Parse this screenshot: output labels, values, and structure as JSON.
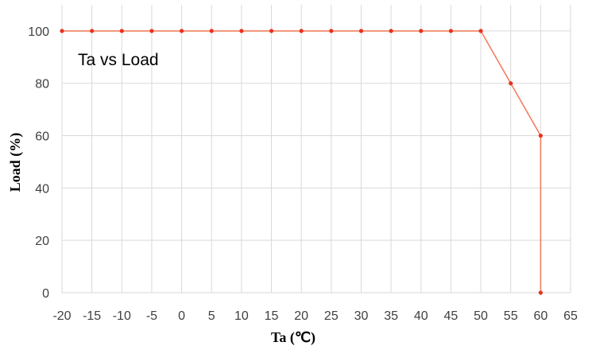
{
  "chart_data": {
    "type": "line",
    "title": "Ta vs Load",
    "xlabel": "Ta (℃)",
    "ylabel": "Load (%)",
    "xlim": [
      -20,
      65
    ],
    "ylim": [
      0,
      110
    ],
    "x_ticks": [
      "-20",
      "-15",
      "-10",
      "-5",
      "0",
      "5",
      "10",
      "15",
      "20",
      "25",
      "30",
      "35",
      "40",
      "45",
      "50",
      "55",
      "60",
      "65"
    ],
    "y_ticks": [
      "0",
      "20",
      "40",
      "60",
      "80",
      "100"
    ],
    "grid": true,
    "series": [
      {
        "color": "#f08060",
        "marker_color": "#e8321e",
        "points": [
          [
            -20,
            100
          ],
          [
            -15,
            100
          ],
          [
            -10,
            100
          ],
          [
            -5,
            100
          ],
          [
            0,
            100
          ],
          [
            5,
            100
          ],
          [
            10,
            100
          ],
          [
            15,
            100
          ],
          [
            20,
            100
          ],
          [
            25,
            100
          ],
          [
            30,
            100
          ],
          [
            35,
            100
          ],
          [
            40,
            100
          ],
          [
            45,
            100
          ],
          [
            50,
            100
          ],
          [
            55,
            80
          ],
          [
            60,
            60
          ],
          [
            60,
            0
          ]
        ]
      }
    ]
  }
}
